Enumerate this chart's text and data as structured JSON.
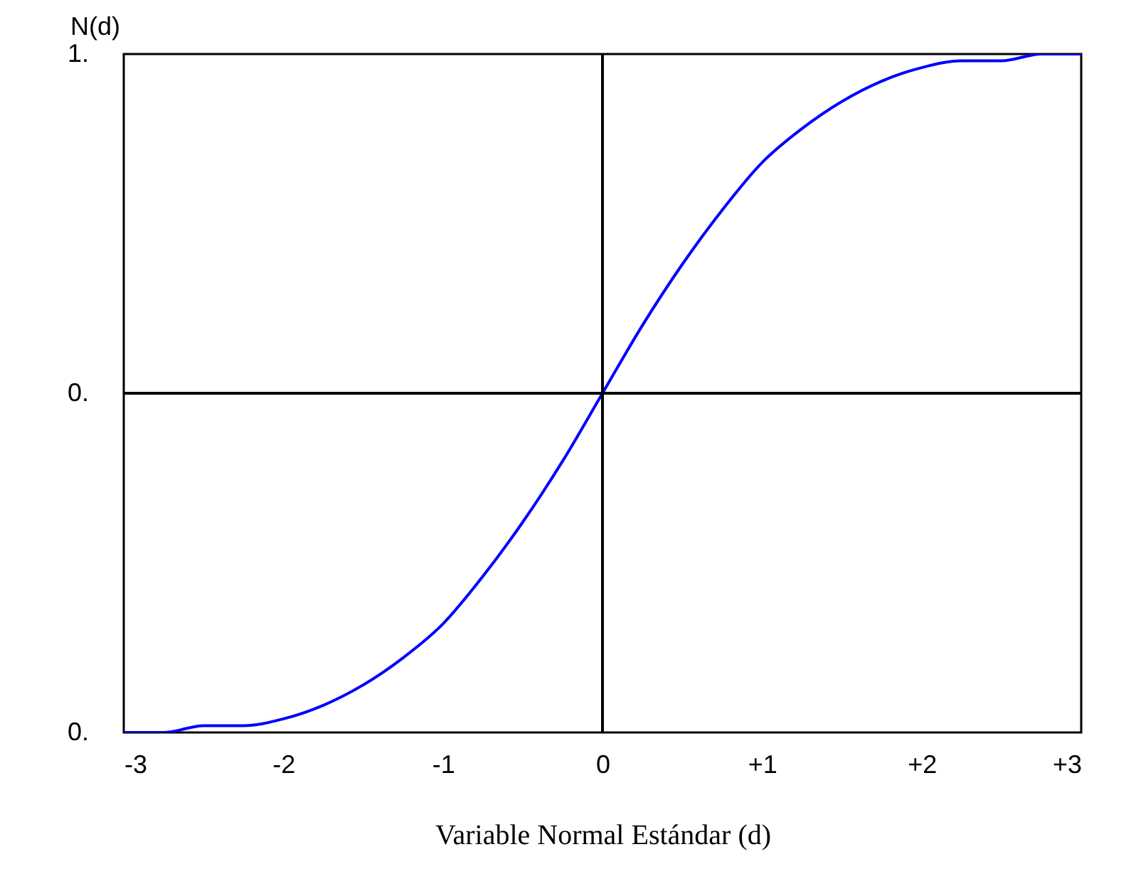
{
  "chart_data": {
    "type": "line",
    "xlabel": "Variable Normal Estándar (d)",
    "ylabel": "N(d)",
    "x": [
      -3,
      -2.75,
      -2.5,
      -2.25,
      -2,
      -1.75,
      -1.5,
      -1.25,
      -1,
      -0.75,
      -0.5,
      -0.25,
      0,
      0.25,
      0.5,
      0.75,
      1,
      1.25,
      1.5,
      1.75,
      2,
      2.25,
      2.5,
      2.75,
      3
    ],
    "series": [
      {
        "color": "#0000ff",
        "values": [
          0.0,
          0.0,
          0.01,
          0.01,
          0.02,
          0.04,
          0.07,
          0.11,
          0.16,
          0.23,
          0.31,
          0.4,
          0.5,
          0.6,
          0.69,
          0.77,
          0.84,
          0.89,
          0.93,
          0.96,
          0.98,
          0.99,
          0.99,
          1.0,
          1.0
        ]
      }
    ],
    "xlim": [
      -3,
      3
    ],
    "ylim": [
      0,
      1
    ],
    "xticks": [
      -3,
      -2,
      -1,
      0,
      {
        "value": 1,
        "label": "+1"
      },
      {
        "value": 2,
        "label": "+2"
      },
      {
        "value": 3,
        "label": "+3"
      }
    ],
    "yticks": [
      {
        "value": 0,
        "label": "0."
      },
      {
        "value": 0.5,
        "label": "0."
      },
      {
        "value": 1,
        "label": "1."
      }
    ],
    "ref_lines": [
      {
        "axis": "x",
        "value": 0,
        "color": "#000000"
      },
      {
        "axis": "y",
        "value": 0.5,
        "color": "#000000"
      }
    ],
    "grid": false
  }
}
